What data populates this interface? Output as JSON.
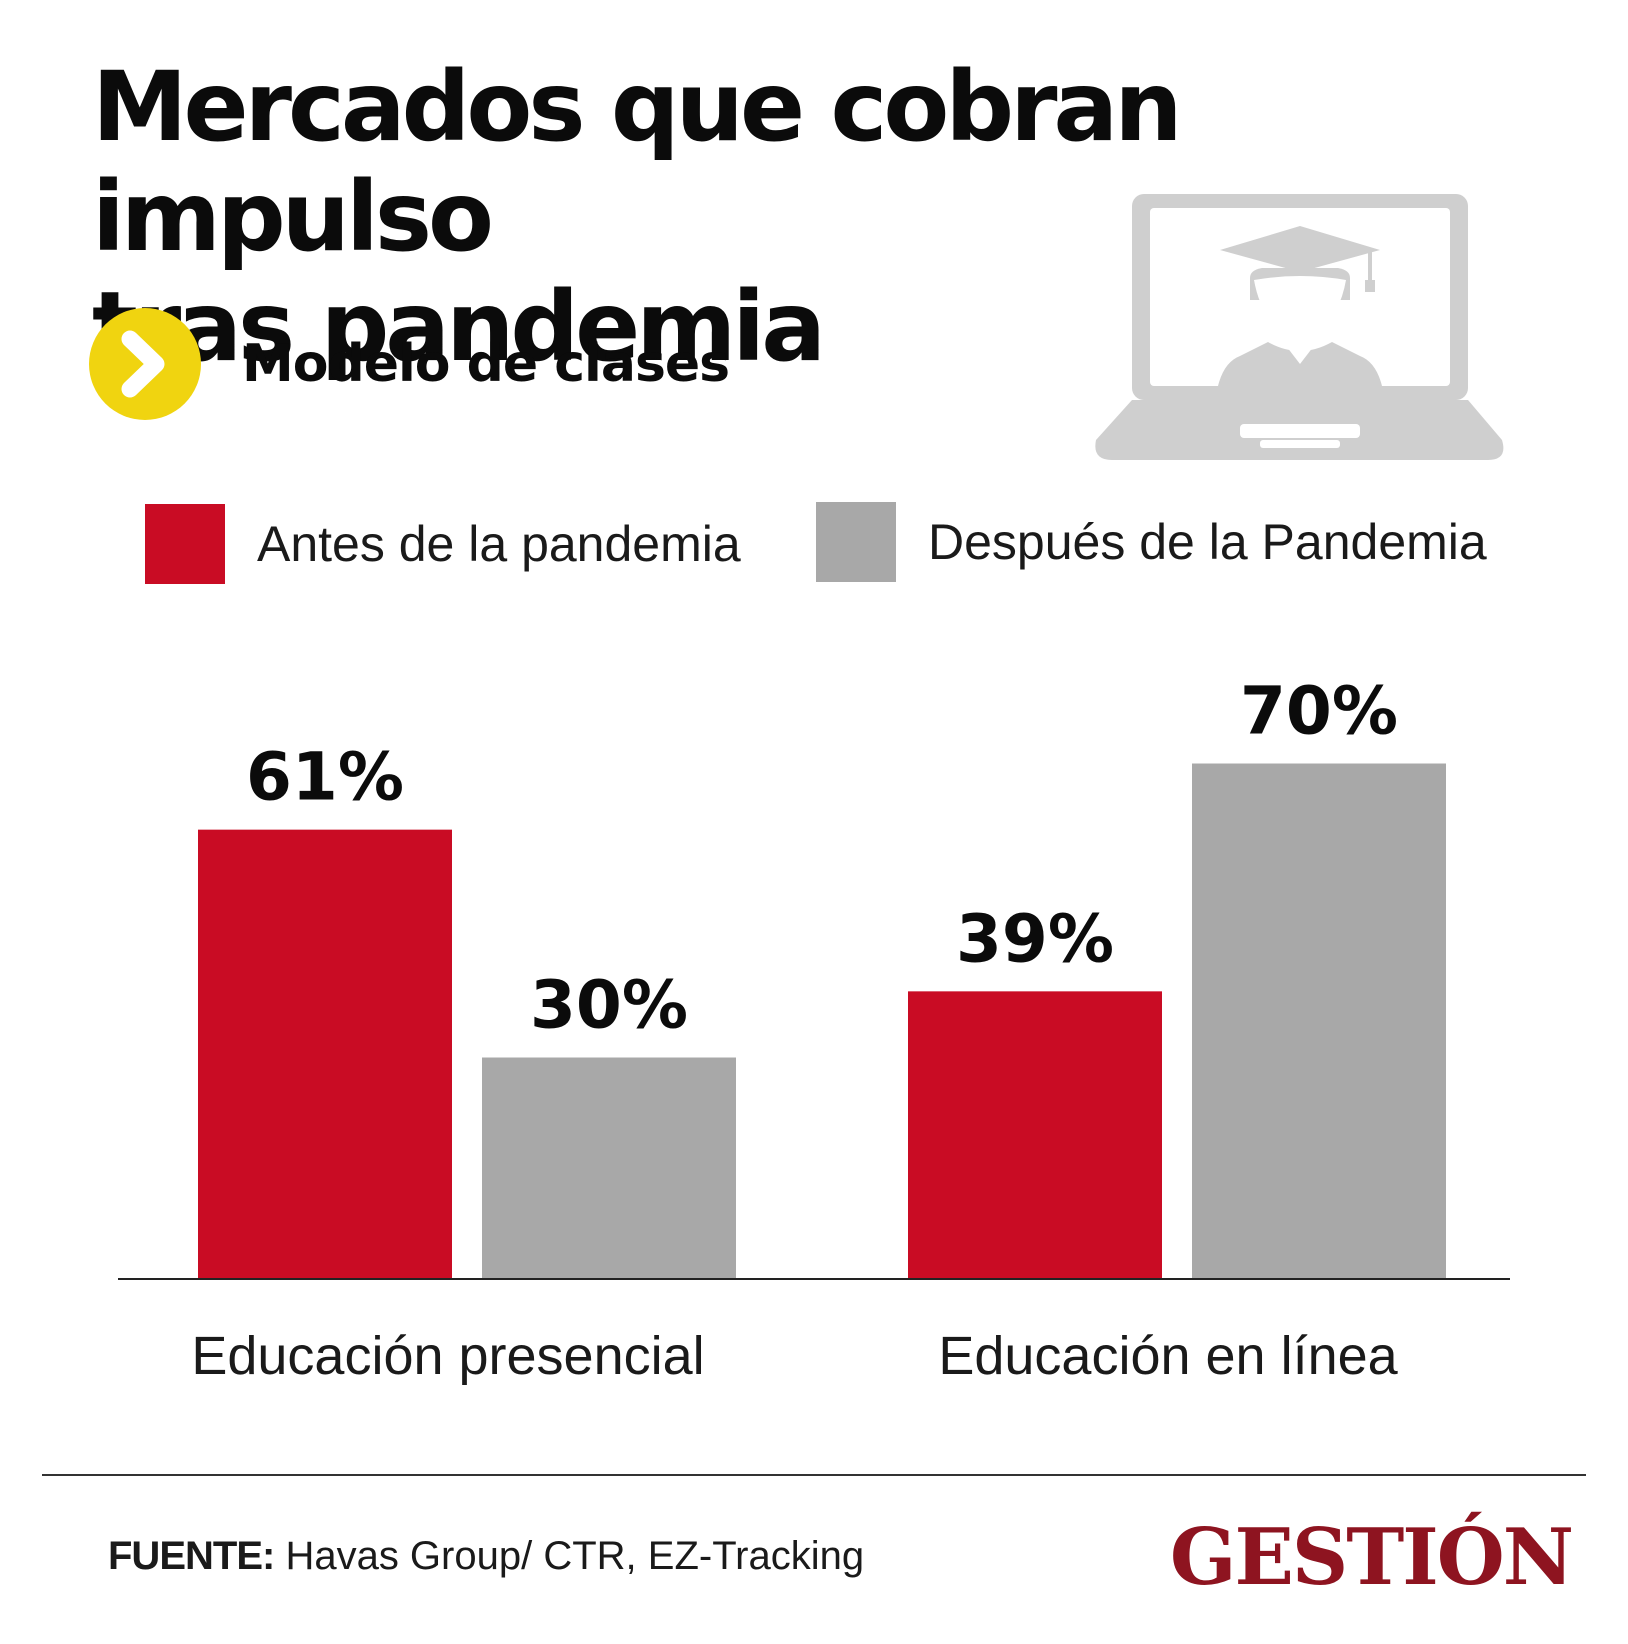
{
  "header": {
    "title_line1": "Mercados que cobran impulso",
    "title_line2": "tras pandemia",
    "subtitle": "Modelo de clases",
    "chevron_icon": "chevron-right-icon",
    "chevron_color": "#f0d410",
    "illustration_icon": "laptop-graduate-icon"
  },
  "chart_data": {
    "type": "bar",
    "categories": [
      "Educación presencial",
      "Educación en línea"
    ],
    "series": [
      {
        "name": "Antes de la pandemia",
        "color": "#c90c24",
        "values": [
          61,
          39
        ]
      },
      {
        "name": "Después de la Pandemia",
        "color": "#a8a8a8",
        "values": [
          30,
          70
        ]
      }
    ],
    "data_labels": [
      [
        "61%",
        "39%"
      ],
      [
        "30%",
        "70%"
      ]
    ],
    "ylim": [
      0,
      100
    ],
    "grid": false,
    "legend_placement": "top"
  },
  "footer": {
    "source_label": "FUENTE:",
    "source_text": " Havas Group/ CTR, EZ-Tracking",
    "brand": "GESTIÓN",
    "brand_color": "#8e1420"
  }
}
